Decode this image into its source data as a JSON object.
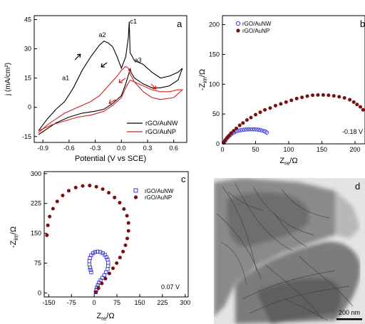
{
  "chart_data": [
    {
      "panel_label": "a",
      "type": "line",
      "xlabel": "Potential (V vs SCE)",
      "ylabel": "j (mA/cm²)",
      "xlim": [
        -1.0,
        0.75
      ],
      "ylim": [
        -18,
        47
      ],
      "xticks": [
        "-0.9",
        "-0.6",
        "-0.3",
        "0.0",
        "0.3",
        "0.6"
      ],
      "yticks": [
        "45",
        "30",
        "15",
        "0",
        "-15"
      ],
      "legend_position": "bottom-right",
      "annotations": [
        {
          "text": "a1",
          "x": -0.68,
          "y": 14
        },
        {
          "text": "a2",
          "x": -0.26,
          "y": 36
        },
        {
          "text": "a3",
          "x": 0.15,
          "y": 23
        },
        {
          "text": "c1",
          "x": 0.1,
          "y": 43
        }
      ],
      "series": [
        {
          "name": "rGO/AuNW",
          "color": "#000000",
          "x": [
            -0.95,
            -0.85,
            -0.75,
            -0.65,
            -0.55,
            -0.45,
            -0.35,
            -0.25,
            -0.2,
            -0.15,
            -0.1,
            -0.05,
            0.0,
            0.05,
            0.08,
            0.09,
            0.1,
            0.15,
            0.25,
            0.35,
            0.45,
            0.55,
            0.65,
            0.7,
            0.65,
            0.55,
            0.45,
            0.35,
            0.25,
            0.15,
            0.11,
            0.1,
            0.09,
            0.05,
            0.0,
            -0.1,
            -0.2,
            -0.3,
            -0.45,
            -0.6,
            -0.75,
            -0.85,
            -0.95
          ],
          "y": [
            -12,
            -6,
            -1,
            3,
            10,
            19,
            26,
            32,
            34,
            33,
            31,
            26,
            20,
            26,
            36,
            44,
            28,
            24,
            22,
            18,
            15,
            16,
            18,
            20,
            14,
            11,
            10,
            10,
            12,
            15,
            18,
            20,
            18,
            12,
            6,
            2,
            -1,
            -2,
            -3,
            -5,
            -8,
            -11,
            -14
          ]
        },
        {
          "name": "rGO/AuNP",
          "color": "#d42020",
          "x": [
            -0.95,
            -0.85,
            -0.75,
            -0.65,
            -0.55,
            -0.45,
            -0.35,
            -0.25,
            -0.15,
            -0.05,
            0.0,
            0.05,
            0.08,
            0.1,
            0.15,
            0.25,
            0.35,
            0.45,
            0.55,
            0.65,
            0.7,
            0.6,
            0.45,
            0.35,
            0.25,
            0.15,
            0.1,
            0.05,
            0.0,
            -0.1,
            -0.2,
            -0.35,
            -0.5,
            -0.65,
            -0.8,
            -0.95
          ],
          "y": [
            -13,
            -9,
            -6,
            -3,
            -1,
            1,
            3,
            6,
            11,
            16,
            19,
            21,
            20,
            17,
            13,
            11,
            9,
            8,
            8,
            9,
            9,
            5,
            4,
            5,
            8,
            13,
            14,
            10,
            5,
            1,
            -2,
            -4,
            -5,
            -7,
            -9,
            -12
          ]
        }
      ]
    },
    {
      "panel_label": "b",
      "type": "scatter",
      "xlabel": "Z_re/Ω",
      "ylabel": "-Z_im/Ω",
      "xlim": [
        0,
        215
      ],
      "ylim": [
        0,
        215
      ],
      "xticks": [
        "0",
        "50",
        "100",
        "150",
        "200"
      ],
      "yticks": [
        "200",
        "150",
        "100",
        "50",
        "0"
      ],
      "legend_position": "top-left",
      "annotation": "-0.18 V",
      "series": [
        {
          "name": "rGO/AuNW",
          "marker": "open-circle",
          "color": "#3a3ad6",
          "x": [
            2,
            4,
            6,
            8,
            10,
            12,
            14,
            16,
            18,
            21,
            24,
            27,
            30,
            33,
            36,
            39,
            42,
            45,
            48,
            51,
            54,
            57,
            60,
            63,
            65,
            67
          ],
          "y": [
            2,
            5,
            8,
            11,
            13,
            15,
            17,
            18.5,
            19.5,
            21,
            22,
            22.7,
            23.3,
            23.8,
            24.1,
            24.3,
            24.4,
            24.4,
            24.3,
            24.1,
            23.7,
            23.1,
            22.3,
            21.3,
            20.3,
            19
          ]
        },
        {
          "name": "rGO/AuNP",
          "marker": "filled-circle",
          "color": "#7a0f0f",
          "x": [
            2,
            4,
            7,
            10,
            13,
            17,
            21,
            26,
            31,
            37,
            43,
            50,
            57,
            64,
            72,
            80,
            88,
            96,
            104,
            112,
            120,
            128,
            136,
            144,
            152,
            160,
            168,
            176,
            184,
            192,
            198,
            203,
            208,
            212
          ],
          "y": [
            2,
            6,
            10,
            14,
            18,
            22,
            26,
            31,
            35,
            40,
            44,
            49,
            53,
            57,
            60,
            64,
            67,
            70,
            73,
            76,
            78,
            80,
            81.5,
            82,
            82,
            81.5,
            80.5,
            79,
            77,
            74,
            70,
            66,
            62,
            57
          ]
        }
      ]
    },
    {
      "panel_label": "c",
      "type": "scatter",
      "xlabel": "Z_re/Ω",
      "ylabel": "-Z_im/Ω",
      "xlim": [
        -165,
        310
      ],
      "ylim": [
        -10,
        305
      ],
      "xticks": [
        "-150",
        "-75",
        "0",
        "75",
        "150",
        "225",
        "300"
      ],
      "yticks": [
        "300",
        "225",
        "150",
        "75",
        "0"
      ],
      "legend_position": "top-right",
      "annotation": "0.07 V",
      "series": [
        {
          "name": "rGO/AuNW",
          "marker": "open-square",
          "color": "#3a3ad6",
          "x": [
            5,
            7,
            9,
            12,
            16,
            21,
            27,
            33,
            39,
            44,
            46,
            46,
            44,
            40,
            35,
            28,
            20,
            11,
            3,
            -4,
            -10,
            -14,
            -16,
            -16,
            -14,
            -12,
            -10
          ],
          "y": [
            2,
            8,
            14,
            20,
            26,
            32,
            38,
            45,
            52,
            60,
            68,
            76,
            84,
            90,
            96,
            100,
            103,
            104,
            103,
            100,
            95,
            88,
            80,
            72,
            64,
            58,
            52
          ]
        },
        {
          "name": "rGO/AuNP",
          "marker": "filled-circle",
          "color": "#7a0f0f",
          "x": [
            5,
            14,
            25,
            37,
            50,
            62,
            74,
            85,
            95,
            103,
            109,
            113,
            113,
            108,
            98,
            84,
            67,
            48,
            28,
            7,
            -15,
            -38,
            -61,
            -84,
            -104,
            -122,
            -136,
            -147,
            -153,
            -156
          ],
          "y": [
            2,
            12,
            24,
            36,
            49,
            62,
            75,
            89,
            104,
            120,
            137,
            156,
            176,
            194,
            211,
            227,
            240,
            252,
            261,
            267,
            270,
            269,
            265,
            257,
            245,
            230,
            212,
            192,
            170,
            145
          ]
        }
      ]
    },
    {
      "panel_label": "d",
      "type": "image",
      "description_text": "200 nm"
    }
  ]
}
